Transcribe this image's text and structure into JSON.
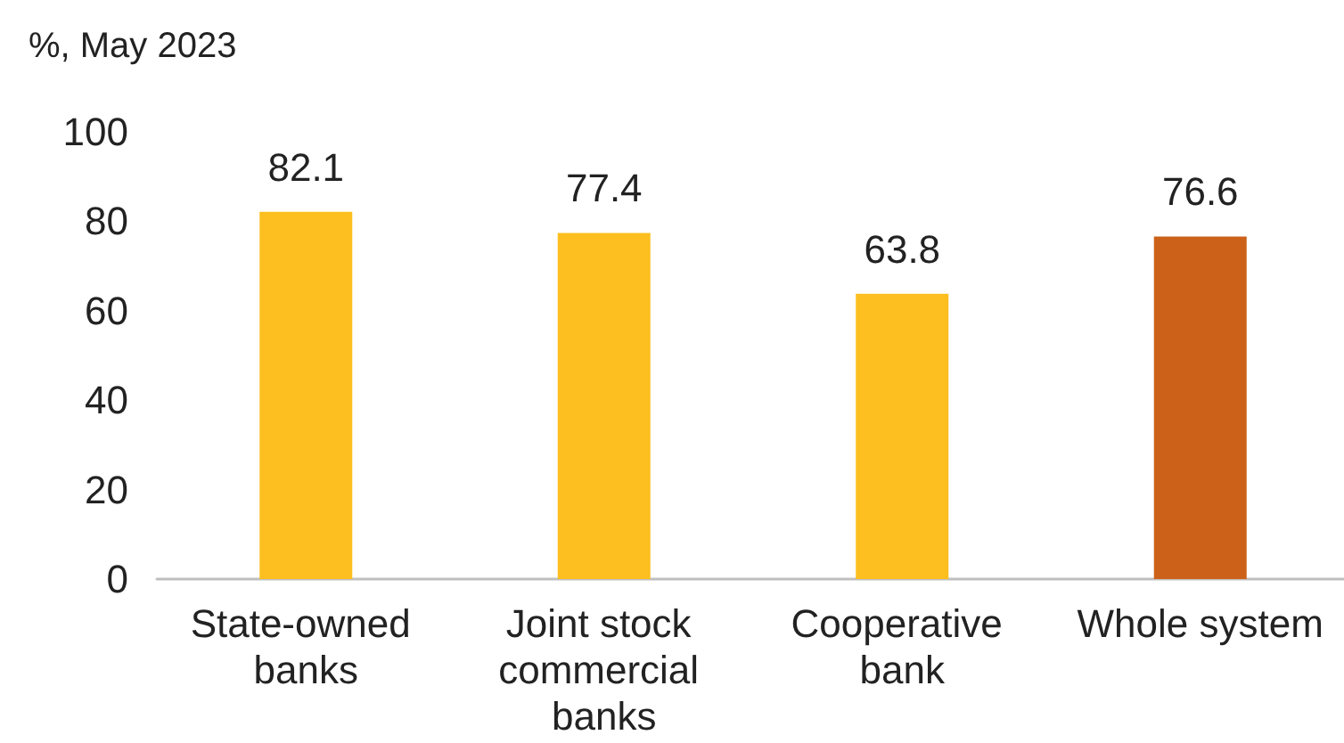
{
  "chart_data": {
    "type": "bar",
    "ylabel": "%, May 2023",
    "categories": [
      "State-owned banks",
      "Joint stock commercial banks",
      "Cooperative bank",
      "Whole system"
    ],
    "values": [
      82.1,
      77.4,
      63.8,
      76.6
    ],
    "colors": [
      "#fdbf1f",
      "#fdbf1f",
      "#fdbf1f",
      "#cc6219"
    ],
    "ylim": [
      0,
      100
    ],
    "yticks": [
      0,
      20,
      40,
      60,
      80,
      100
    ],
    "grid": false,
    "data_labels": true
  }
}
